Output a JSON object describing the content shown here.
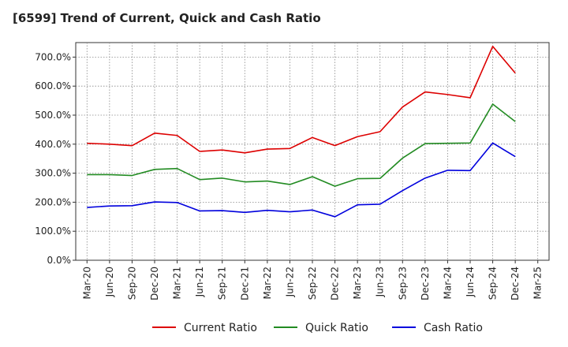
{
  "chart_data": {
    "type": "line",
    "title": "[6599]  Trend of Current, Quick and Cash Ratio",
    "xlabel": "",
    "ylabel": "",
    "ylim": [
      0,
      750
    ],
    "y_ticks": [
      0,
      100,
      200,
      300,
      400,
      500,
      600,
      700
    ],
    "y_tick_labels": [
      "0.0%",
      "100.0%",
      "200.0%",
      "300.0%",
      "400.0%",
      "500.0%",
      "600.0%",
      "700.0%"
    ],
    "x_tick_labels": [
      "Mar-20",
      "Jun-20",
      "Sep-20",
      "Dec-20",
      "Mar-21",
      "Jun-21",
      "Sep-21",
      "Dec-21",
      "Mar-22",
      "Jun-22",
      "Sep-22",
      "Dec-22",
      "Mar-23",
      "Jun-23",
      "Sep-23",
      "Dec-23",
      "Mar-24",
      "Jun-24",
      "Sep-24",
      "Dec-24",
      "Mar-25"
    ],
    "grid": true,
    "legend_position": "bottom",
    "series": [
      {
        "name": "Current Ratio",
        "color": "#dd0000",
        "values": [
          403,
          400,
          395,
          438,
          430,
          375,
          380,
          370,
          383,
          385,
          423,
          395,
          426,
          443,
          528,
          580,
          571,
          560,
          737,
          645
        ]
      },
      {
        "name": "Quick Ratio",
        "color": "#228b22",
        "values": [
          295,
          295,
          292,
          313,
          316,
          278,
          283,
          270,
          273,
          261,
          288,
          255,
          281,
          282,
          352,
          402,
          403,
          404,
          538,
          478
        ]
      },
      {
        "name": "Cash Ratio",
        "color": "#0000dd",
        "values": [
          182,
          187,
          188,
          201,
          199,
          170,
          171,
          165,
          172,
          167,
          173,
          150,
          191,
          193,
          240,
          283,
          310,
          309,
          404,
          357
        ]
      }
    ]
  }
}
